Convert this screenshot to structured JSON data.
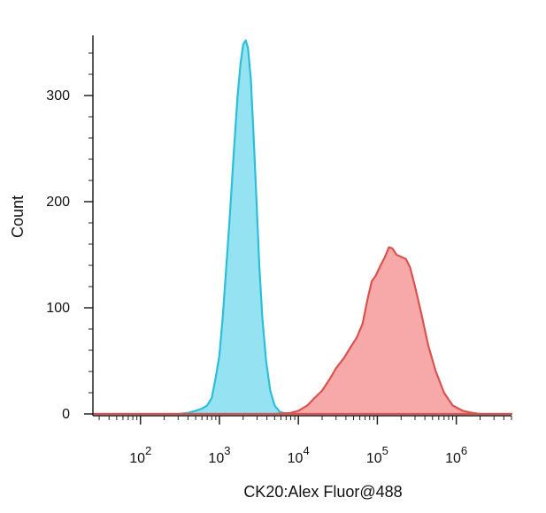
{
  "chart_data": {
    "type": "area",
    "title": "",
    "xlabel": "CK20:Alex Fluor@488",
    "ylabel": "Count",
    "x_scale": "log10",
    "xlim": [
      25,
      5000000
    ],
    "ylim": [
      0,
      360
    ],
    "x_ticks": [
      {
        "value": 100,
        "base": "10",
        "exp": "2"
      },
      {
        "value": 1000,
        "base": "10",
        "exp": "3"
      },
      {
        "value": 10000,
        "base": "10",
        "exp": "4"
      },
      {
        "value": 100000,
        "base": "10",
        "exp": "5"
      },
      {
        "value": 1000000,
        "base": "10",
        "exp": "6"
      }
    ],
    "y_ticks": [
      {
        "value": 0,
        "label": "0"
      },
      {
        "value": 100,
        "label": "100"
      },
      {
        "value": 200,
        "label": "200"
      },
      {
        "value": 300,
        "label": "300"
      }
    ],
    "grid": false,
    "legend": "none",
    "series": [
      {
        "color_fill": "#8fe0f2",
        "color_line": "#2bbfd8",
        "points": [
          [
            25,
            0
          ],
          [
            300,
            0
          ],
          [
            400,
            1
          ],
          [
            500,
            3
          ],
          [
            600,
            5
          ],
          [
            700,
            8
          ],
          [
            800,
            15
          ],
          [
            900,
            35
          ],
          [
            1000,
            55
          ],
          [
            1100,
            90
          ],
          [
            1200,
            130
          ],
          [
            1350,
            185
          ],
          [
            1500,
            240
          ],
          [
            1700,
            300
          ],
          [
            1850,
            330
          ],
          [
            2000,
            348
          ],
          [
            2150,
            352
          ],
          [
            2300,
            345
          ],
          [
            2500,
            315
          ],
          [
            2700,
            265
          ],
          [
            2950,
            200
          ],
          [
            3200,
            140
          ],
          [
            3500,
            90
          ],
          [
            3900,
            50
          ],
          [
            4400,
            22
          ],
          [
            5000,
            8
          ],
          [
            5800,
            2
          ],
          [
            7000,
            0
          ],
          [
            5000000,
            0
          ]
        ]
      },
      {
        "color_fill": "#f7a3a3",
        "color_line": "#d9534f",
        "points": [
          [
            25,
            0
          ],
          [
            5000,
            0
          ],
          [
            8000,
            1
          ],
          [
            10000,
            3
          ],
          [
            13000,
            8
          ],
          [
            16000,
            15
          ],
          [
            20000,
            22
          ],
          [
            25000,
            33
          ],
          [
            30000,
            43
          ],
          [
            38000,
            53
          ],
          [
            45000,
            62
          ],
          [
            55000,
            72
          ],
          [
            65000,
            85
          ],
          [
            75000,
            108
          ],
          [
            85000,
            125
          ],
          [
            95000,
            130
          ],
          [
            110000,
            140
          ],
          [
            125000,
            148
          ],
          [
            140000,
            157
          ],
          [
            155000,
            156
          ],
          [
            175000,
            150
          ],
          [
            200000,
            148
          ],
          [
            230000,
            146
          ],
          [
            260000,
            138
          ],
          [
            300000,
            120
          ],
          [
            360000,
            95
          ],
          [
            440000,
            65
          ],
          [
            550000,
            40
          ],
          [
            700000,
            20
          ],
          [
            900000,
            8
          ],
          [
            1200000,
            3
          ],
          [
            1600000,
            1
          ],
          [
            2000000,
            0
          ],
          [
            5000000,
            0
          ]
        ]
      }
    ]
  }
}
